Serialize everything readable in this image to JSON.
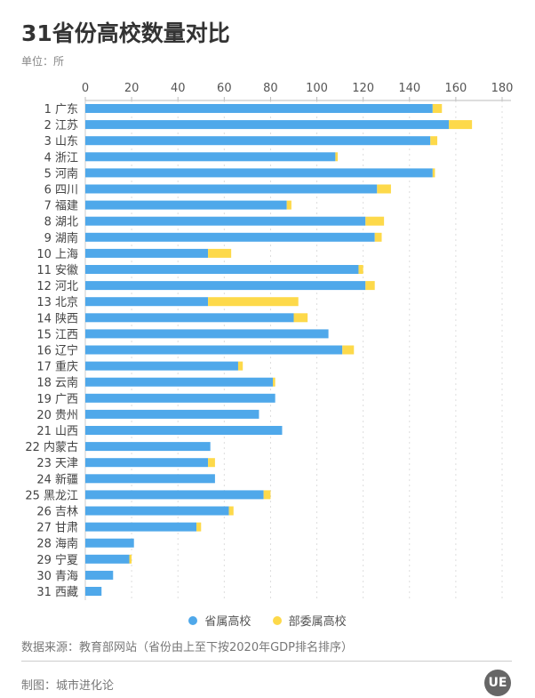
{
  "chart_data": {
    "type": "bar",
    "stacked": true,
    "orientation": "horizontal",
    "title": "31省份高校数量对比",
    "unit": "单位：所",
    "xlim": [
      0,
      180
    ],
    "xticks": [
      0,
      20,
      40,
      60,
      80,
      100,
      120,
      140,
      160,
      180
    ],
    "grid": true,
    "legend_position": "bottom",
    "categories": [
      "1 广东",
      "2 江苏",
      "3 山东",
      "4 浙江",
      "5 河南",
      "6 四川",
      "7 福建",
      "8 湖北",
      "9 湖南",
      "10 上海",
      "11 安徽",
      "12 河北",
      "13 北京",
      "14 陕西",
      "15 江西",
      "16 辽宁",
      "17 重庆",
      "18 云南",
      "19 广西",
      "20 贵州",
      "21 山西",
      "22 内蒙古",
      "23 天津",
      "24 新疆",
      "25 黑龙江",
      "26 吉林",
      "27 甘肃",
      "28 海南",
      "29 宁夏",
      "30 青海",
      "31 西藏"
    ],
    "series": [
      {
        "name": "省属高校",
        "color": "#4fa8ea",
        "values": [
          150,
          157,
          149,
          108,
          150,
          126,
          87,
          121,
          125,
          53,
          118,
          121,
          53,
          90,
          105,
          111,
          66,
          81,
          82,
          75,
          85,
          54,
          53,
          56,
          77,
          62,
          48,
          21,
          19,
          12,
          7
        ]
      },
      {
        "name": "部委属高校",
        "color": "#fdd94a",
        "values": [
          4,
          10,
          3,
          1,
          1,
          6,
          2,
          8,
          3,
          10,
          2,
          4,
          39,
          6,
          0,
          5,
          2,
          1,
          0,
          0,
          0,
          0,
          3,
          0,
          3,
          2,
          2,
          0,
          1,
          0,
          0
        ]
      }
    ]
  },
  "source": "数据来源：教育部网站（省份由上至下按2020年GDP排名排序）",
  "credit": "制图：城市进化论",
  "logo_text": "UE"
}
